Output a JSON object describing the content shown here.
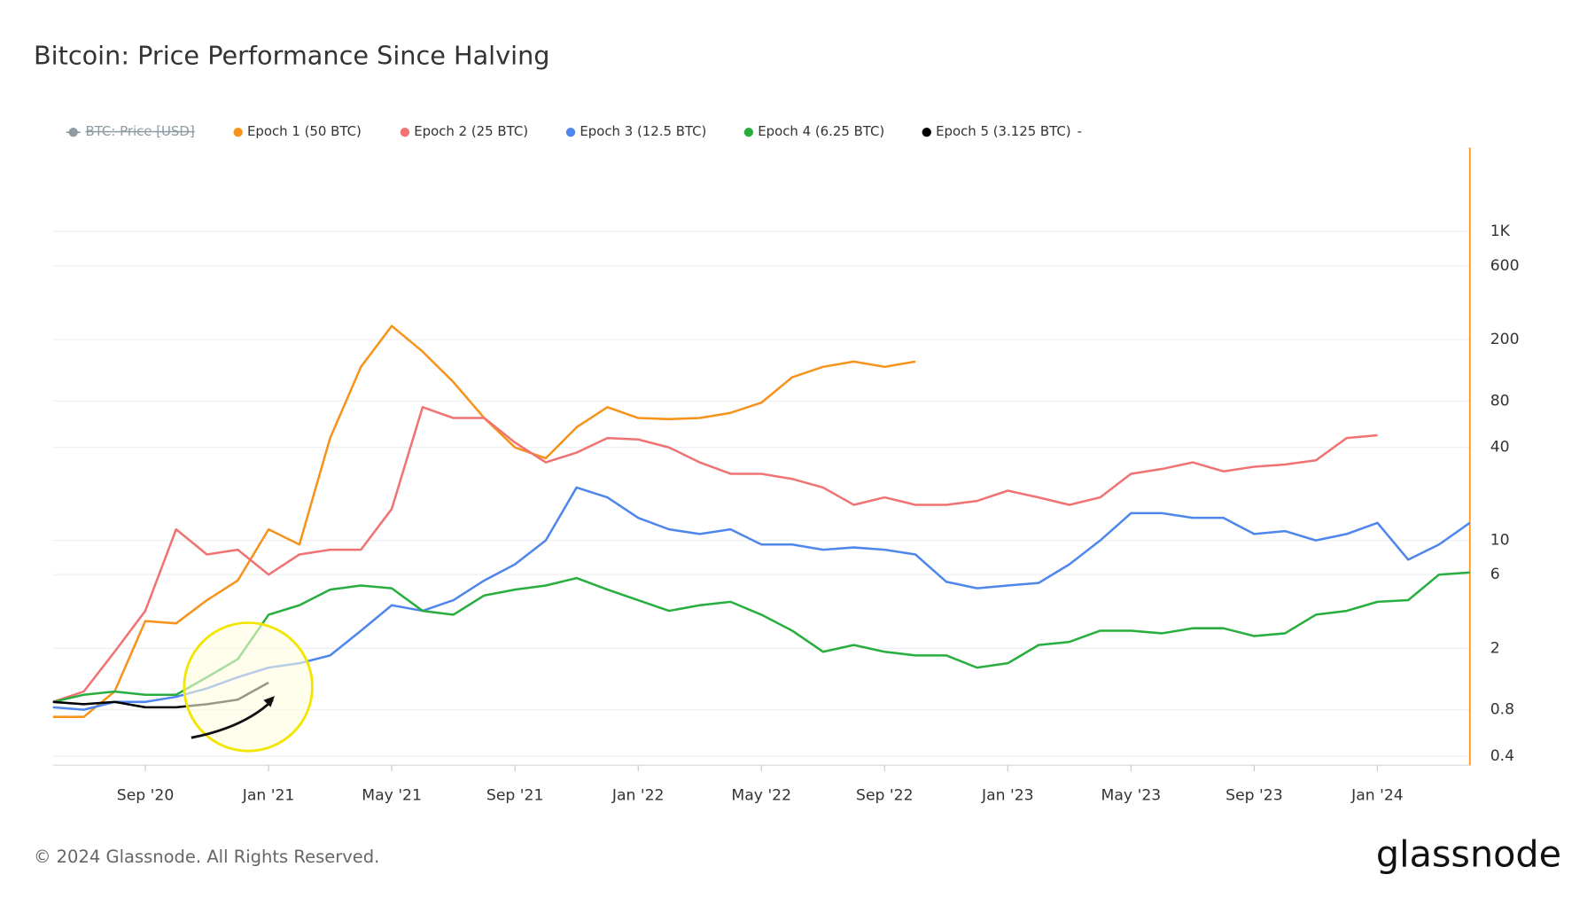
{
  "chart_data": {
    "type": "line",
    "title": "Bitcoin: Price Performance Since Halving",
    "footer": "© 2024 Glassnode. All Rights Reserved.",
    "brand": "glassnode",
    "hidden_series": {
      "name": "BTC: Price [USD]",
      "color": "#8f9ba3"
    },
    "legend_extra": "-",
    "axis_color": "#f7931a",
    "log_scale": true,
    "grid": true,
    "x": [
      "2020-06",
      "2020-07",
      "2020-08",
      "2020-09",
      "2020-10",
      "2020-11",
      "2020-12",
      "2021-01",
      "2021-02",
      "2021-03",
      "2021-04",
      "2021-05",
      "2021-06",
      "2021-07",
      "2021-08",
      "2021-09",
      "2021-10",
      "2021-11",
      "2021-12",
      "2022-01",
      "2022-02",
      "2022-03",
      "2022-04",
      "2022-05",
      "2022-06",
      "2022-07",
      "2022-08",
      "2022-09",
      "2022-10",
      "2022-11",
      "2022-12",
      "2023-01",
      "2023-02",
      "2023-03",
      "2023-04",
      "2023-05",
      "2023-06",
      "2023-07",
      "2023-08",
      "2023-09",
      "2023-10",
      "2023-11",
      "2023-12",
      "2024-01",
      "2024-02",
      "2024-03",
      "2024-04"
    ],
    "xlim": [
      "2020-06",
      "2024-04"
    ],
    "xticks": [
      {
        "value": "2020-09",
        "label": "Sep '20"
      },
      {
        "value": "2021-01",
        "label": "Jan '21"
      },
      {
        "value": "2021-05",
        "label": "May '21"
      },
      {
        "value": "2021-09",
        "label": "Sep '21"
      },
      {
        "value": "2022-01",
        "label": "Jan '22"
      },
      {
        "value": "2022-05",
        "label": "May '22"
      },
      {
        "value": "2022-09",
        "label": "Sep '22"
      },
      {
        "value": "2023-01",
        "label": "Jan '23"
      },
      {
        "value": "2023-05",
        "label": "May '23"
      },
      {
        "value": "2023-09",
        "label": "Sep '23"
      },
      {
        "value": "2024-01",
        "label": "Jan '24"
      }
    ],
    "ylim": [
      0.35,
      3500
    ],
    "yticks": [
      0.4,
      0.8,
      2,
      6,
      10,
      40,
      80,
      200,
      600,
      {
        "value": 1000,
        "label": "1K"
      }
    ],
    "series": [
      {
        "name": "Epoch 1 (50 BTC)",
        "color": "#f7931a",
        "values": [
          0.72,
          0.72,
          1.05,
          3.0,
          2.9,
          4.1,
          5.5,
          11.8,
          9.4,
          46,
          133,
          245,
          167,
          106,
          62,
          40,
          34,
          54,
          73,
          62,
          61,
          62,
          67,
          78,
          114,
          133,
          144,
          133,
          144,
          null,
          null,
          null,
          null,
          null,
          null,
          null,
          null,
          null,
          null,
          null,
          null,
          null,
          null,
          null,
          null,
          null,
          null
        ]
      },
      {
        "name": "Epoch 2 (25 BTC)",
        "color": "#f07272",
        "values": [
          0.9,
          1.05,
          1.9,
          3.5,
          11.8,
          8.1,
          8.7,
          6.0,
          8.1,
          8.7,
          8.7,
          16,
          73,
          62,
          62,
          43,
          32,
          37,
          46,
          45,
          40,
          32,
          27,
          27,
          25,
          22,
          17,
          19,
          17,
          17,
          18,
          21,
          19,
          17,
          19,
          27,
          29,
          32,
          28,
          30,
          31,
          33,
          46,
          48,
          null,
          null,
          null
        ]
      },
      {
        "name": "Epoch 3 (12.5 BTC)",
        "color": "#4f86ec",
        "values": [
          0.83,
          0.8,
          0.9,
          0.9,
          0.97,
          1.1,
          1.3,
          1.5,
          1.6,
          1.8,
          2.6,
          3.8,
          3.5,
          4.1,
          5.5,
          7.0,
          10,
          22,
          19,
          14,
          11.8,
          11,
          11.8,
          9.4,
          9.4,
          8.7,
          9.0,
          8.7,
          8.1,
          5.4,
          4.9,
          5.1,
          5.3,
          7.0,
          10,
          15,
          15,
          14,
          14,
          11,
          11.5,
          10,
          11,
          13,
          7.5,
          9.4,
          13
        ]
      },
      {
        "name": "Epoch 4 (6.25 BTC)",
        "color": "#27ae3f",
        "values": [
          0.9,
          1.0,
          1.05,
          1.0,
          1.0,
          1.3,
          1.7,
          3.3,
          3.8,
          4.8,
          5.1,
          4.9,
          3.5,
          3.3,
          4.4,
          4.8,
          5.1,
          5.7,
          4.8,
          4.1,
          3.5,
          3.8,
          4.0,
          3.3,
          2.6,
          1.9,
          2.1,
          1.9,
          1.8,
          1.8,
          1.5,
          1.6,
          2.1,
          2.2,
          2.6,
          2.6,
          2.5,
          2.7,
          2.7,
          2.4,
          2.5,
          3.3,
          3.5,
          4.0,
          4.1,
          6.0,
          6.2
        ]
      },
      {
        "name": "Epoch 5 (3.125 BTC)",
        "color": "#000000",
        "values": [
          0.9,
          0.87,
          0.9,
          0.83,
          0.83,
          0.87,
          0.93,
          1.2,
          null,
          null,
          null,
          null,
          null,
          null,
          null,
          null,
          null,
          null,
          null,
          null,
          null,
          null,
          null,
          null,
          null,
          null,
          null,
          null,
          null,
          null,
          null,
          null,
          null,
          null,
          null,
          null,
          null,
          null,
          null,
          null,
          null,
          null,
          null,
          null,
          null,
          null,
          null
        ]
      }
    ]
  }
}
